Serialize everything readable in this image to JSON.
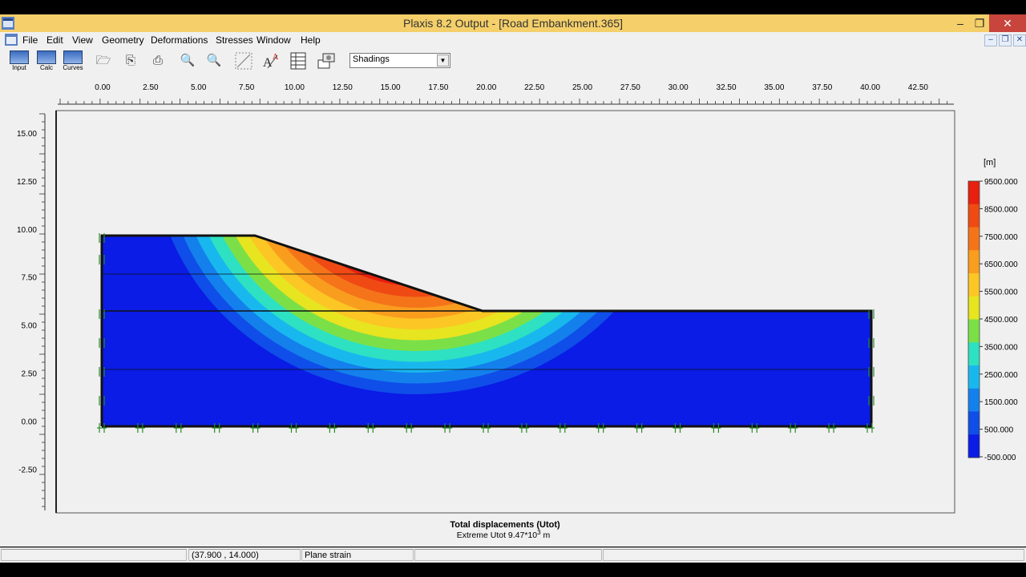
{
  "window": {
    "title": "Plaxis 8.2 Output - [Road Embankment.365]",
    "minimize": "–",
    "maximize": "❐",
    "close": "✕"
  },
  "menu": {
    "items": [
      "File",
      "Edit",
      "View",
      "Geometry",
      "Deformations",
      "Stresses",
      "Window",
      "Help"
    ],
    "mdi_min": "–",
    "mdi_restore": "❐",
    "mdi_close": "✕"
  },
  "toolbar": {
    "labeled_buttons": [
      "Input",
      "Calc",
      "Curves"
    ],
    "icons": [
      "open-icon",
      "export-icon",
      "print-icon",
      "zoom-in-icon",
      "zoom-out-icon",
      "select-rect-icon",
      "text-annotate-icon",
      "table-icon",
      "view-icon"
    ],
    "display_mode": "Shadings"
  },
  "x_ruler": {
    "ticks": [
      "0.00",
      "2.50",
      "5.00",
      "7.50",
      "10.00",
      "12.50",
      "15.00",
      "17.50",
      "20.00",
      "22.50",
      "25.00",
      "27.50",
      "30.00",
      "32.50",
      "35.00",
      "37.50",
      "40.00",
      "42.50"
    ]
  },
  "y_ruler": {
    "ticks": [
      "15.00",
      "12.50",
      "10.00",
      "7.50",
      "5.00",
      "2.50",
      "0.00",
      "-2.50"
    ]
  },
  "legend": {
    "unit": "[m]",
    "labels": [
      "9500.000",
      "8500.000",
      "7500.000",
      "6500.000",
      "5500.000",
      "4500.000",
      "3500.000",
      "2500.000",
      "1500.000",
      "500.000",
      "-500.000"
    ],
    "colors": [
      "#e8200f",
      "#ef4a14",
      "#f5741a",
      "#f99d1f",
      "#fcc624",
      "#e7e420",
      "#7be048",
      "#2ee1c2",
      "#18b8ee",
      "#1480ec",
      "#0f4ee8",
      "#0a1ce6"
    ]
  },
  "caption": {
    "title": "Total displacements (Utot)",
    "extreme_prefix": "Extreme Utot 9.47*10",
    "extreme_exp": "3",
    "extreme_unit": " m"
  },
  "status": {
    "coords": "(37.900 , 14.000)",
    "analysis": "Plane strain"
  }
}
